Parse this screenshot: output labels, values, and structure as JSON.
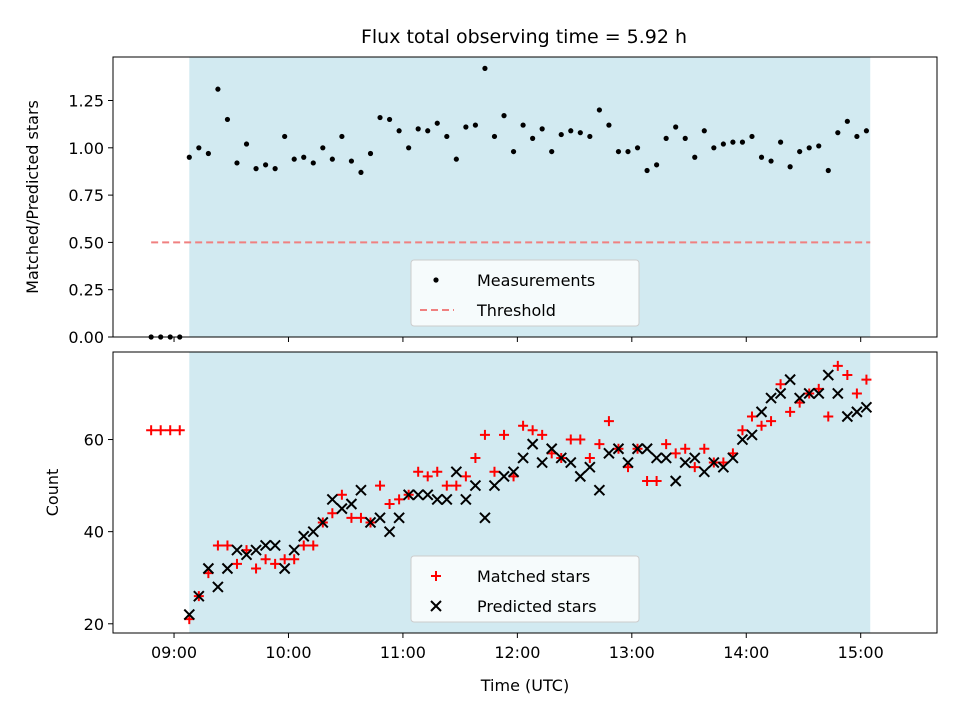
{
  "chart_data": [
    {
      "type": "scatter",
      "title": "Flux total observing time = 5.92 h",
      "xlabel": "",
      "ylabel": "Matched/Predicted stars",
      "ylim": [
        0,
        1.48
      ],
      "xlim": [
        "08:28",
        "15:40"
      ],
      "y_ticks": [
        "0.00",
        "0.25",
        "0.50",
        "0.75",
        "1.00",
        "1.25"
      ],
      "y_tick_values": [
        0,
        0.25,
        0.5,
        0.75,
        1.0,
        1.25
      ],
      "x_tick_labels_visible": false,
      "x_tick_times": [
        "09:00",
        "10:00",
        "11:00",
        "12:00",
        "13:00",
        "14:00",
        "15:00"
      ],
      "shaded_span": [
        "09:08",
        "15:05"
      ],
      "shaded_color": "#add8e6",
      "legend_position": "lower-center",
      "legend": [
        "Measurements",
        "Threshold"
      ],
      "threshold": {
        "value": 0.5,
        "x_range": [
          "08:48",
          "15:05"
        ],
        "color": "#f08080",
        "style": "dashed"
      },
      "series": [
        {
          "name": "Measurements",
          "color": "#000000",
          "marker": "dot",
          "points": [
            [
              "08:48",
              0.0
            ],
            [
              "08:53",
              0.0
            ],
            [
              "08:58",
              0.0
            ],
            [
              "09:03",
              0.0
            ],
            [
              "09:08",
              0.95
            ],
            [
              "09:13",
              1.0
            ],
            [
              "09:18",
              0.97
            ],
            [
              "09:23",
              1.31
            ],
            [
              "09:28",
              1.15
            ],
            [
              "09:33",
              0.92
            ],
            [
              "09:38",
              1.02
            ],
            [
              "09:43",
              0.89
            ],
            [
              "09:48",
              0.91
            ],
            [
              "09:53",
              0.89
            ],
            [
              "09:58",
              1.06
            ],
            [
              "10:03",
              0.94
            ],
            [
              "10:08",
              0.95
            ],
            [
              "10:13",
              0.92
            ],
            [
              "10:18",
              1.0
            ],
            [
              "10:23",
              0.94
            ],
            [
              "10:28",
              1.06
            ],
            [
              "10:33",
              0.93
            ],
            [
              "10:38",
              0.87
            ],
            [
              "10:43",
              0.97
            ],
            [
              "10:48",
              1.16
            ],
            [
              "10:53",
              1.15
            ],
            [
              "10:58",
              1.09
            ],
            [
              "11:03",
              1.0
            ],
            [
              "11:08",
              1.1
            ],
            [
              "11:13",
              1.09
            ],
            [
              "11:18",
              1.13
            ],
            [
              "11:23",
              1.06
            ],
            [
              "11:28",
              0.94
            ],
            [
              "11:33",
              1.11
            ],
            [
              "11:38",
              1.12
            ],
            [
              "11:43",
              1.42
            ],
            [
              "11:48",
              1.06
            ],
            [
              "11:53",
              1.17
            ],
            [
              "11:58",
              0.98
            ],
            [
              "12:03",
              1.12
            ],
            [
              "12:08",
              1.05
            ],
            [
              "12:13",
              1.1
            ],
            [
              "12:18",
              0.98
            ],
            [
              "12:23",
              1.07
            ],
            [
              "12:28",
              1.09
            ],
            [
              "12:33",
              1.08
            ],
            [
              "12:38",
              1.06
            ],
            [
              "12:43",
              1.2
            ],
            [
              "12:48",
              1.12
            ],
            [
              "12:53",
              0.98
            ],
            [
              "12:58",
              0.98
            ],
            [
              "13:03",
              1.0
            ],
            [
              "13:08",
              0.88
            ],
            [
              "13:13",
              0.91
            ],
            [
              "13:18",
              1.05
            ],
            [
              "13:23",
              1.11
            ],
            [
              "13:28",
              1.05
            ],
            [
              "13:33",
              0.95
            ],
            [
              "13:38",
              1.09
            ],
            [
              "13:43",
              1.0
            ],
            [
              "13:48",
              1.02
            ],
            [
              "13:53",
              1.03
            ],
            [
              "13:58",
              1.03
            ],
            [
              "14:03",
              1.06
            ],
            [
              "14:08",
              0.95
            ],
            [
              "14:13",
              0.93
            ],
            [
              "14:18",
              1.03
            ],
            [
              "14:23",
              0.9
            ],
            [
              "14:28",
              0.98
            ],
            [
              "14:33",
              1.0
            ],
            [
              "14:38",
              1.01
            ],
            [
              "14:43",
              0.88
            ],
            [
              "14:48",
              1.08
            ],
            [
              "14:53",
              1.14
            ],
            [
              "14:58",
              1.06
            ],
            [
              "15:03",
              1.09
            ]
          ]
        }
      ]
    },
    {
      "type": "scatter",
      "title": "",
      "xlabel": "Time (UTC)",
      "ylabel": "Count",
      "ylim": [
        18,
        79
      ],
      "xlim": [
        "08:28",
        "15:40"
      ],
      "y_ticks": [
        "20",
        "40",
        "60"
      ],
      "y_tick_values": [
        20,
        40,
        60
      ],
      "x_ticks": [
        "09:00",
        "10:00",
        "11:00",
        "12:00",
        "13:00",
        "14:00",
        "15:00"
      ],
      "shaded_span": [
        "09:08",
        "15:05"
      ],
      "shaded_color": "#add8e6",
      "legend_position": "lower-center",
      "legend": [
        "Matched stars",
        "Predicted stars"
      ],
      "series": [
        {
          "name": "Matched stars",
          "color": "#ff0000",
          "marker": "plus",
          "points": [
            [
              "08:48",
              62
            ],
            [
              "08:53",
              62
            ],
            [
              "08:58",
              62
            ],
            [
              "09:03",
              62
            ],
            [
              "09:08",
              21
            ],
            [
              "09:13",
              26
            ],
            [
              "09:18",
              31
            ],
            [
              "09:23",
              37
            ],
            [
              "09:28",
              37
            ],
            [
              "09:33",
              33
            ],
            [
              "09:38",
              36
            ],
            [
              "09:43",
              32
            ],
            [
              "09:48",
              34
            ],
            [
              "09:53",
              33
            ],
            [
              "09:58",
              34
            ],
            [
              "10:03",
              34
            ],
            [
              "10:08",
              37
            ],
            [
              "10:13",
              37
            ],
            [
              "10:18",
              42
            ],
            [
              "10:23",
              44
            ],
            [
              "10:28",
              48
            ],
            [
              "10:33",
              43
            ],
            [
              "10:38",
              43
            ],
            [
              "10:43",
              42
            ],
            [
              "10:48",
              50
            ],
            [
              "10:53",
              46
            ],
            [
              "10:58",
              47
            ],
            [
              "11:03",
              48
            ],
            [
              "11:08",
              53
            ],
            [
              "11:13",
              52
            ],
            [
              "11:18",
              53
            ],
            [
              "11:23",
              50
            ],
            [
              "11:28",
              50
            ],
            [
              "11:33",
              52
            ],
            [
              "11:38",
              56
            ],
            [
              "11:43",
              61
            ],
            [
              "11:48",
              53
            ],
            [
              "11:53",
              61
            ],
            [
              "11:58",
              52
            ],
            [
              "12:03",
              63
            ],
            [
              "12:08",
              62
            ],
            [
              "12:13",
              61
            ],
            [
              "12:18",
              57
            ],
            [
              "12:23",
              56
            ],
            [
              "12:28",
              60
            ],
            [
              "12:33",
              60
            ],
            [
              "12:38",
              56
            ],
            [
              "12:43",
              59
            ],
            [
              "12:48",
              64
            ],
            [
              "12:53",
              58
            ],
            [
              "12:58",
              54
            ],
            [
              "13:03",
              58
            ],
            [
              "13:08",
              51
            ],
            [
              "13:13",
              51
            ],
            [
              "13:18",
              59
            ],
            [
              "13:23",
              57
            ],
            [
              "13:28",
              58
            ],
            [
              "13:33",
              54
            ],
            [
              "13:38",
              58
            ],
            [
              "13:43",
              55
            ],
            [
              "13:48",
              55
            ],
            [
              "13:53",
              57
            ],
            [
              "13:58",
              62
            ],
            [
              "14:03",
              65
            ],
            [
              "14:08",
              63
            ],
            [
              "14:13",
              64
            ],
            [
              "14:18",
              72
            ],
            [
              "14:23",
              66
            ],
            [
              "14:28",
              68
            ],
            [
              "14:33",
              70
            ],
            [
              "14:38",
              71
            ],
            [
              "14:43",
              65
            ],
            [
              "14:48",
              76
            ],
            [
              "14:53",
              74
            ],
            [
              "14:58",
              70
            ],
            [
              "15:03",
              73
            ]
          ]
        },
        {
          "name": "Predicted stars",
          "color": "#000000",
          "marker": "x",
          "points": [
            [
              "09:08",
              22
            ],
            [
              "09:13",
              26
            ],
            [
              "09:18",
              32
            ],
            [
              "09:23",
              28
            ],
            [
              "09:28",
              32
            ],
            [
              "09:33",
              36
            ],
            [
              "09:38",
              35
            ],
            [
              "09:43",
              36
            ],
            [
              "09:48",
              37
            ],
            [
              "09:53",
              37
            ],
            [
              "09:58",
              32
            ],
            [
              "10:03",
              36
            ],
            [
              "10:08",
              39
            ],
            [
              "10:13",
              40
            ],
            [
              "10:18",
              42
            ],
            [
              "10:23",
              47
            ],
            [
              "10:28",
              45
            ],
            [
              "10:33",
              46
            ],
            [
              "10:38",
              49
            ],
            [
              "10:43",
              42
            ],
            [
              "10:48",
              43
            ],
            [
              "10:53",
              40
            ],
            [
              "10:58",
              43
            ],
            [
              "11:03",
              48
            ],
            [
              "11:08",
              48
            ],
            [
              "11:13",
              48
            ],
            [
              "11:18",
              47
            ],
            [
              "11:23",
              47
            ],
            [
              "11:28",
              53
            ],
            [
              "11:33",
              47
            ],
            [
              "11:38",
              50
            ],
            [
              "11:43",
              43
            ],
            [
              "11:48",
              50
            ],
            [
              "11:53",
              52
            ],
            [
              "11:58",
              53
            ],
            [
              "12:03",
              56
            ],
            [
              "12:08",
              59
            ],
            [
              "12:13",
              55
            ],
            [
              "12:18",
              58
            ],
            [
              "12:23",
              56
            ],
            [
              "12:28",
              55
            ],
            [
              "12:33",
              52
            ],
            [
              "12:38",
              54
            ],
            [
              "12:43",
              49
            ],
            [
              "12:48",
              57
            ],
            [
              "12:53",
              58
            ],
            [
              "12:58",
              55
            ],
            [
              "13:03",
              58
            ],
            [
              "13:08",
              58
            ],
            [
              "13:13",
              56
            ],
            [
              "13:18",
              56
            ],
            [
              "13:23",
              51
            ],
            [
              "13:28",
              55
            ],
            [
              "13:33",
              56
            ],
            [
              "13:38",
              53
            ],
            [
              "13:43",
              55
            ],
            [
              "13:48",
              54
            ],
            [
              "13:53",
              56
            ],
            [
              "13:58",
              60
            ],
            [
              "14:03",
              61
            ],
            [
              "14:08",
              66
            ],
            [
              "14:13",
              69
            ],
            [
              "14:18",
              70
            ],
            [
              "14:23",
              73
            ],
            [
              "14:28",
              69
            ],
            [
              "14:33",
              70
            ],
            [
              "14:38",
              70
            ],
            [
              "14:43",
              74
            ],
            [
              "14:48",
              70
            ],
            [
              "14:53",
              65
            ],
            [
              "14:58",
              66
            ],
            [
              "15:03",
              67
            ]
          ]
        }
      ]
    }
  ]
}
